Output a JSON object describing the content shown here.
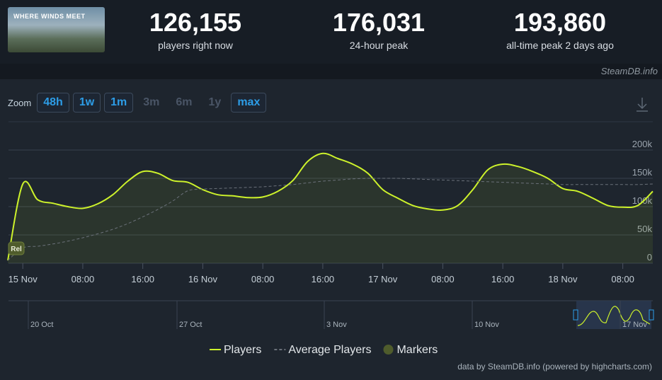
{
  "header": {
    "stats": [
      {
        "value": "126,155",
        "label": "players right now"
      },
      {
        "value": "176,031",
        "label": "24-hour peak"
      },
      {
        "value": "193,860",
        "label": "all-time peak 2 days ago"
      }
    ],
    "logo": "WHERE WINDS MEET",
    "watermark": "SteamDB.info"
  },
  "zoom": {
    "label": "Zoom",
    "buttons": [
      {
        "label": "48h",
        "enabled": true
      },
      {
        "label": "1w",
        "enabled": true
      },
      {
        "label": "1m",
        "enabled": true
      },
      {
        "label": "3m",
        "enabled": false
      },
      {
        "label": "6m",
        "enabled": false
      },
      {
        "label": "1y",
        "enabled": false
      },
      {
        "label": "max",
        "enabled": true
      }
    ]
  },
  "chart_data": {
    "type": "line",
    "categories": [
      null,
      "15 Nov",
      null,
      null,
      null,
      "08:00",
      null,
      null,
      null,
      "16:00",
      null,
      null,
      null,
      "16 Nov",
      null,
      null,
      null,
      "08:00",
      null,
      null,
      null,
      "16:00",
      null,
      null,
      null,
      "17 Nov",
      null,
      null,
      null,
      "08:00",
      null,
      null,
      null,
      "16:00",
      null,
      null,
      null,
      "18 Nov",
      null,
      null,
      null,
      "08:00",
      null,
      null
    ],
    "series": [
      {
        "name": "Players",
        "color": "#cdf22b",
        "values": [
          5000,
          140000,
          112000,
          106000,
          100000,
          97000,
          105000,
          121000,
          145000,
          162000,
          159000,
          146000,
          143000,
          130000,
          121000,
          119000,
          116000,
          117000,
          127000,
          146000,
          180000,
          194000,
          185000,
          175000,
          159000,
          130000,
          115000,
          102000,
          96000,
          94000,
          102000,
          130000,
          165000,
          175000,
          171000,
          162000,
          150000,
          132000,
          127000,
          115000,
          102000,
          99000,
          102000,
          127000
        ]
      },
      {
        "name": "Average Players",
        "color": "#6b717a",
        "values": [
          5000,
          27000,
          30000,
          34000,
          39000,
          45000,
          52000,
          60000,
          70000,
          82000,
          95000,
          110000,
          128000,
          131000,
          132000,
          133000,
          134000,
          135000,
          137000,
          139000,
          142000,
          145000,
          147000,
          149000,
          150000,
          150000,
          150000,
          149000,
          148000,
          147000,
          146000,
          145000,
          144000,
          143000,
          142000,
          141000,
          140000,
          139000,
          139000,
          139000,
          139000,
          139000,
          139000,
          140000
        ]
      }
    ],
    "markers": {
      "name": "Markers",
      "color": "#4f5c2c",
      "items": [
        {
          "label": "Rel"
        }
      ]
    },
    "ylim": [
      0,
      200000
    ],
    "yticks": [
      0,
      {
        "value": 50000,
        "label": "50k"
      },
      {
        "value": 100000,
        "label": "100k"
      },
      {
        "value": 150000,
        "label": "150k"
      },
      {
        "value": 200000,
        "label": "200k"
      }
    ],
    "grid": true,
    "legend": "bottom",
    "navigator": {
      "labels": [
        "20 Oct",
        "27 Oct",
        "3 Nov",
        "10 Nov",
        "17 Nov"
      ]
    },
    "credit": "data by SteamDB.info (powered by highcharts.com)"
  }
}
